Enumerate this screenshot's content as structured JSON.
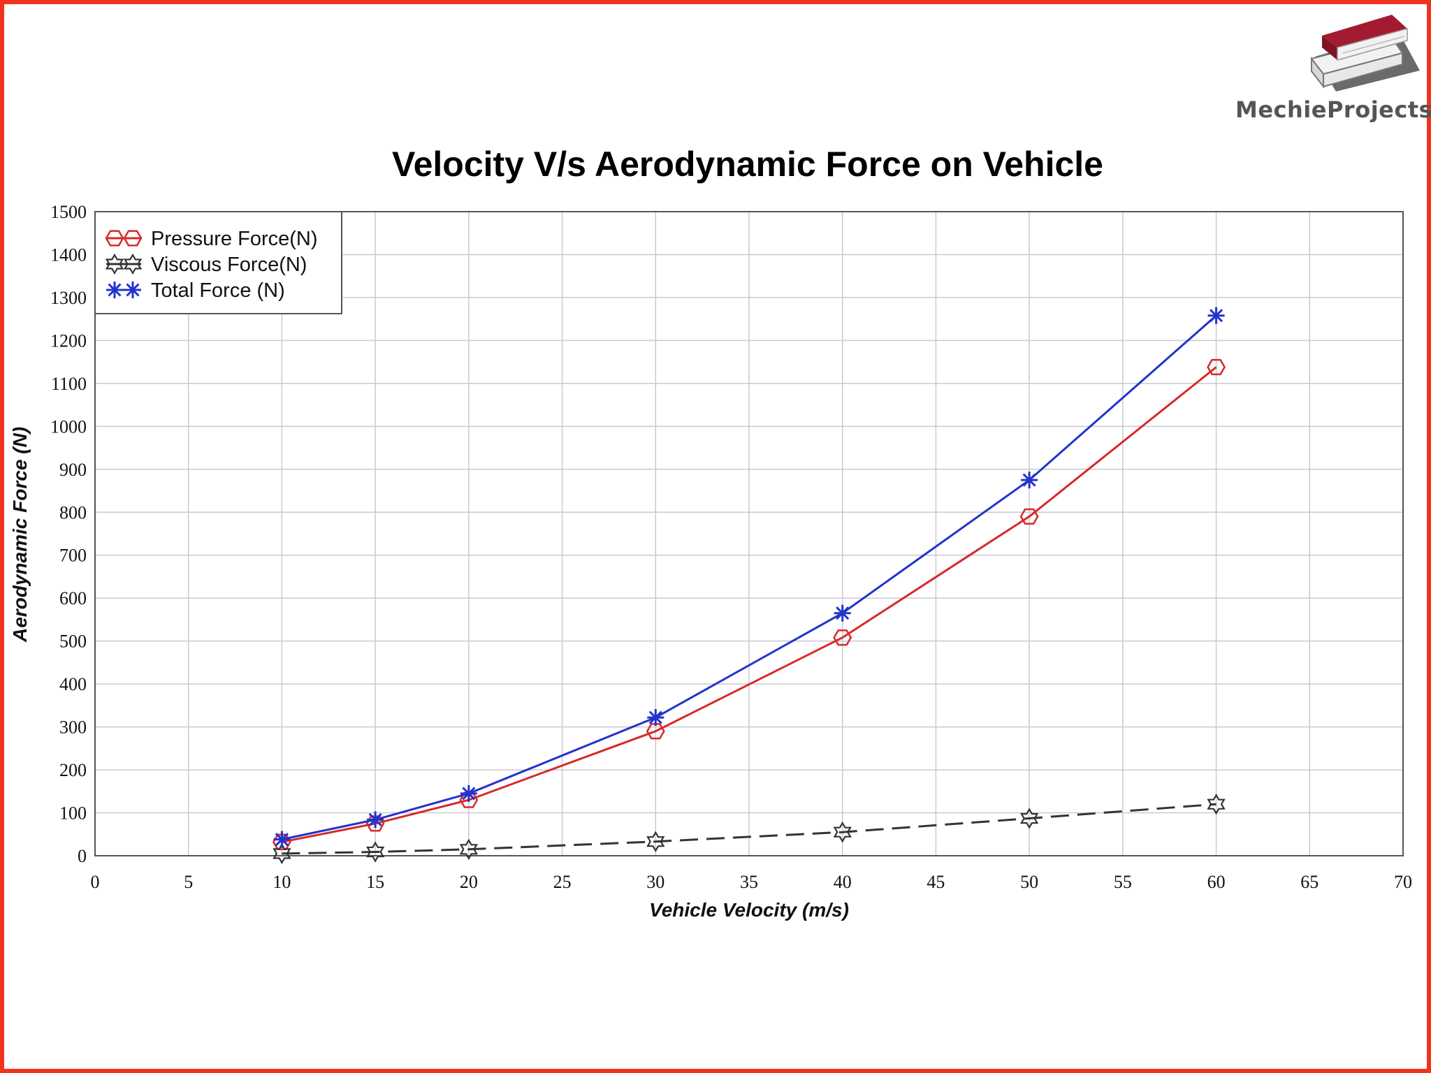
{
  "brand": {
    "name": "MechieProjects",
    "logo_icon": "books-icon",
    "colors": {
      "book_top": "#a31b30",
      "book_bottom": "#f2f2f2",
      "shadow": "#6a6a6a"
    }
  },
  "frame": {
    "border_color": "#f0321e"
  },
  "chart_data": {
    "type": "line",
    "title": "Velocity V/s Aerodynamic Force on Vehicle",
    "xlabel": "Vehicle Velocity (m/s)",
    "ylabel": "Aerodynamic Force (N)",
    "xlim": [
      0,
      70
    ],
    "ylim": [
      0,
      1500
    ],
    "xticks": [
      "0",
      "5",
      "10",
      "15",
      "20",
      "25",
      "30",
      "35",
      "40",
      "45",
      "50",
      "55",
      "60",
      "65",
      "70"
    ],
    "yticks": [
      "0",
      "100",
      "200",
      "300",
      "400",
      "500",
      "600",
      "700",
      "800",
      "900",
      "1000",
      "1100",
      "1200",
      "1300",
      "1400",
      "1500"
    ],
    "grid": true,
    "legend_position": "top-left",
    "x": [
      10,
      15,
      20,
      30,
      40,
      50,
      60
    ],
    "series": [
      {
        "name": "Pressure Force(N)",
        "color": "#d62a2a",
        "marker": "hexagon",
        "dashed": false,
        "values": [
          32,
          75,
          130,
          290,
          508,
          790,
          1138
        ]
      },
      {
        "name": "Viscous Force(N)",
        "color": "#333333",
        "marker": "star",
        "dashed": true,
        "values": [
          5,
          9,
          15,
          33,
          55,
          87,
          120
        ]
      },
      {
        "name": "Total Force (N)",
        "color": "#2233cc",
        "marker": "asterisk",
        "dashed": false,
        "values": [
          38,
          84,
          145,
          322,
          565,
          875,
          1258
        ]
      }
    ]
  }
}
